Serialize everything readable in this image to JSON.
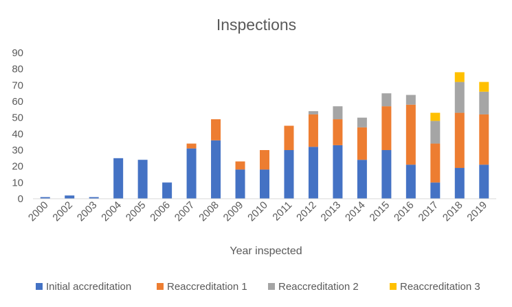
{
  "chart_data": {
    "type": "bar",
    "stacked": true,
    "title": "Inspections",
    "xlabel": "Year inspected",
    "ylabel": "",
    "ylim": [
      0,
      90
    ],
    "yticks": [
      0,
      10,
      20,
      30,
      40,
      50,
      60,
      70,
      80,
      90
    ],
    "grid": false,
    "legend_position": "bottom",
    "categories": [
      "2000",
      "2002",
      "2003",
      "2004",
      "2005",
      "2006",
      "2007",
      "2008",
      "2009",
      "2010",
      "2011",
      "2012",
      "2013",
      "2014",
      "2015",
      "2016",
      "2017",
      "2018",
      "2019"
    ],
    "series": [
      {
        "name": "Initial accreditation",
        "color": "#4472C4",
        "values": [
          1,
          2,
          1,
          25,
          24,
          10,
          31,
          36,
          18,
          18,
          30,
          32,
          33,
          24,
          30,
          21,
          10,
          19,
          21
        ]
      },
      {
        "name": "Reaccreditation 1",
        "color": "#ED7D31",
        "values": [
          0,
          0,
          0,
          0,
          0,
          0,
          3,
          13,
          5,
          12,
          15,
          20,
          16,
          20,
          27,
          37,
          24,
          34,
          31
        ]
      },
      {
        "name": "Reaccreditation 2",
        "color": "#A5A5A5",
        "values": [
          0,
          0,
          0,
          0,
          0,
          0,
          0,
          0,
          0,
          0,
          0,
          2,
          8,
          6,
          8,
          6,
          14,
          19,
          14
        ]
      },
      {
        "name": "Reaccreditation 3",
        "color": "#FFC000",
        "values": [
          0,
          0,
          0,
          0,
          0,
          0,
          0,
          0,
          0,
          0,
          0,
          0,
          0,
          0,
          0,
          0,
          5,
          6,
          6
        ]
      }
    ]
  }
}
